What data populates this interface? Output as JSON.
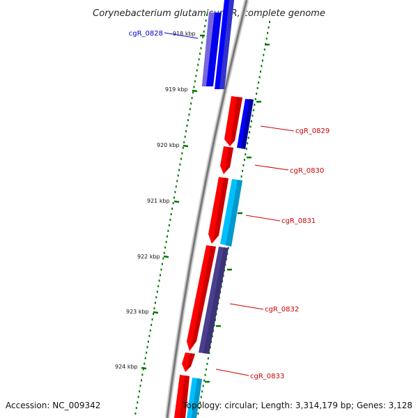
{
  "title": "Corynebacterium glutamicum R, complete genome",
  "accession": "Accession: NC_009342",
  "summary": "Topology: circular; Length: 3,314,179 bp; Genes: 3,128",
  "colors": {
    "forward_strand_gene": "#ff0000",
    "reverse_strand_gene": "#0000ff",
    "tick": "#007700",
    "backbone": "#888888",
    "label_forward": "#cc0000",
    "label_reverse": "#0000cc",
    "cds_light_blue": "#00bfff",
    "cds_dark_purple": "#4a3f8f",
    "cds_light_purple": "#7766dd"
  },
  "kbp_labels": [
    "918 kbp",
    "919 kbp",
    "920 kbp",
    "921 kbp",
    "922 kbp",
    "923 kbp",
    "924 kbp"
  ],
  "gene_labels": [
    {
      "name": "cgR_0828",
      "strand": "reverse"
    },
    {
      "name": "cgR_0829",
      "strand": "forward"
    },
    {
      "name": "cgR_0830",
      "strand": "forward"
    },
    {
      "name": "cgR_0831",
      "strand": "forward"
    },
    {
      "name": "cgR_0832",
      "strand": "forward"
    },
    {
      "name": "cgR_0833",
      "strand": "forward"
    }
  ]
}
